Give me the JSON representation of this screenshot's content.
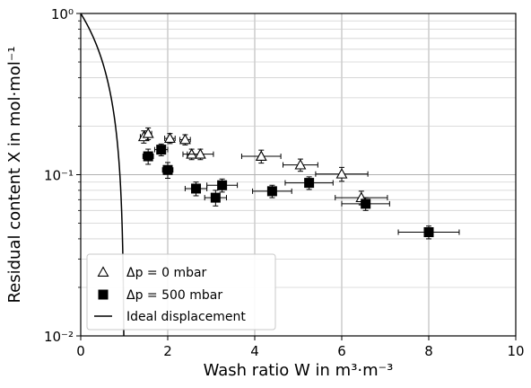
{
  "chart_data": {
    "type": "scatter",
    "title": "",
    "xlabel": "Wash ratio W in m³·m⁻³",
    "ylabel": "Residual content X in mol·mol⁻¹",
    "xlim": [
      0,
      10
    ],
    "ylim": [
      0.01,
      1
    ],
    "yscale": "log",
    "grid": true,
    "legend_position": "bottom-left",
    "x_ticks": [
      0,
      2,
      4,
      6,
      8,
      10
    ],
    "x_tick_labels": [
      "0",
      "2",
      "4",
      "6",
      "8",
      "10"
    ],
    "y_ticks": [
      0.01,
      0.1,
      1
    ],
    "y_tick_labels": [
      "10⁻²",
      "10⁻¹",
      "10⁰"
    ],
    "series": [
      {
        "name": "Δp = 0 mbar",
        "marker": "open-triangle",
        "color": "#000000",
        "points": [
          {
            "x": 1.45,
            "y": 0.172,
            "xerr": 0.08,
            "yerr": 0.015
          },
          {
            "x": 1.55,
            "y": 0.18,
            "xerr": 0.08,
            "yerr": 0.015
          },
          {
            "x": 2.05,
            "y": 0.168,
            "xerr": 0.12,
            "yerr": 0.012
          },
          {
            "x": 2.4,
            "y": 0.165,
            "xerr": 0.12,
            "yerr": 0.012
          },
          {
            "x": 2.55,
            "y": 0.134,
            "xerr": 0.2,
            "yerr": 0.01
          },
          {
            "x": 2.75,
            "y": 0.134,
            "xerr": 0.3,
            "yerr": 0.01
          },
          {
            "x": 4.15,
            "y": 0.13,
            "xerr": 0.45,
            "yerr": 0.012
          },
          {
            "x": 5.05,
            "y": 0.115,
            "xerr": 0.4,
            "yerr": 0.01
          },
          {
            "x": 6.0,
            "y": 0.101,
            "xerr": 0.6,
            "yerr": 0.01
          },
          {
            "x": 6.45,
            "y": 0.072,
            "xerr": 0.6,
            "yerr": 0.007
          }
        ]
      },
      {
        "name": "Δp = 500 mbar",
        "marker": "filled-square",
        "color": "#000000",
        "points": [
          {
            "x": 1.55,
            "y": 0.13,
            "xerr": 0.12,
            "yerr": 0.014
          },
          {
            "x": 1.85,
            "y": 0.143,
            "xerr": 0.15,
            "yerr": 0.012
          },
          {
            "x": 2.0,
            "y": 0.107,
            "xerr": 0.12,
            "yerr": 0.012
          },
          {
            "x": 2.65,
            "y": 0.082,
            "xerr": 0.25,
            "yerr": 0.008
          },
          {
            "x": 3.1,
            "y": 0.072,
            "xerr": 0.25,
            "yerr": 0.008
          },
          {
            "x": 3.25,
            "y": 0.086,
            "xerr": 0.35,
            "yerr": 0.008
          },
          {
            "x": 4.4,
            "y": 0.079,
            "xerr": 0.45,
            "yerr": 0.007
          },
          {
            "x": 5.25,
            "y": 0.089,
            "xerr": 0.55,
            "yerr": 0.008
          },
          {
            "x": 6.55,
            "y": 0.066,
            "xerr": 0.55,
            "yerr": 0.006
          },
          {
            "x": 8.0,
            "y": 0.044,
            "xerr": 0.7,
            "yerr": 0.004
          }
        ]
      },
      {
        "name": "Ideal displacement",
        "marker": "line",
        "color": "#000000",
        "function": "X = 1 - W",
        "domain": [
          0,
          0.99
        ]
      }
    ]
  }
}
